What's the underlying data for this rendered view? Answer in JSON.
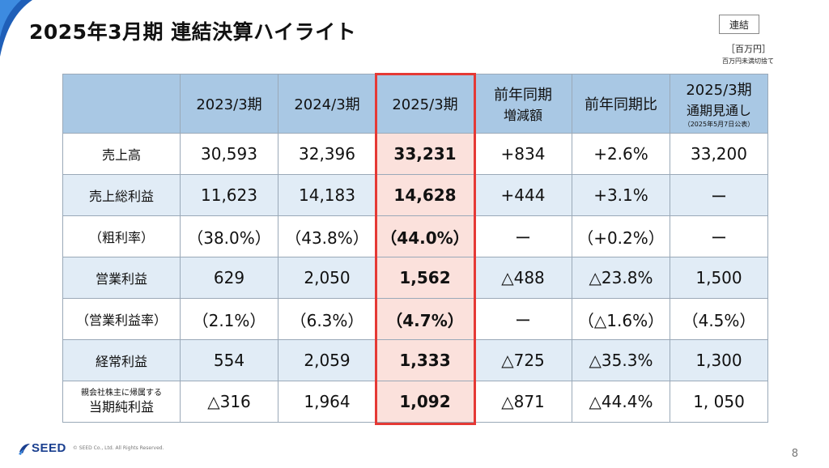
{
  "page": {
    "title": "2025年3月期 連結決算ハイライト",
    "badge": "連結",
    "unit": "［百万円］",
    "unit_note": "百万円未満切捨て",
    "page_number": "8"
  },
  "table": {
    "headers": [
      {
        "label": "",
        "sub": "",
        "tiny": ""
      },
      {
        "label": "2023/3期",
        "sub": "",
        "tiny": ""
      },
      {
        "label": "2024/3期",
        "sub": "",
        "tiny": ""
      },
      {
        "label": "2025/3期",
        "sub": "",
        "tiny": ""
      },
      {
        "label": "前年同期",
        "sub": "増減額",
        "tiny": ""
      },
      {
        "label": "前年同期比",
        "sub": "",
        "tiny": ""
      },
      {
        "label": "2025/3期",
        "sub": "通期見通し",
        "tiny": "（2025年5月7日公表）"
      }
    ],
    "rows": [
      {
        "label_small": "",
        "label": "売上高",
        "cells": [
          "30,593",
          "32,396",
          "33,231",
          "+834",
          "+2.6%",
          "33,200"
        ]
      },
      {
        "label_small": "",
        "label": "売上総利益",
        "cells": [
          "11,623",
          "14,183",
          "14,628",
          "+444",
          "+3.1%",
          "ー"
        ]
      },
      {
        "label_small": "",
        "label": "（粗利率）",
        "cells": [
          "（38.0%）",
          "（43.8%）",
          "（44.0%）",
          "ー",
          "（+0.2%）",
          "ー"
        ]
      },
      {
        "label_small": "",
        "label": "営業利益",
        "cells": [
          "629",
          "2,050",
          "1,562",
          "△488",
          "△23.8%",
          "1,500"
        ]
      },
      {
        "label_small": "",
        "label": "（営業利益率）",
        "cells": [
          "（2.1%）",
          "（6.3%）",
          "（4.7%）",
          "ー",
          "（△1.6%）",
          "（4.5%）"
        ]
      },
      {
        "label_small": "",
        "label": "経常利益",
        "cells": [
          "554",
          "2,059",
          "1,333",
          "△725",
          "△35.3%",
          "1,300"
        ]
      },
      {
        "label_small": "親会社株主に帰属する",
        "label": "当期純利益",
        "cells": [
          "△316",
          "1,964",
          "1,092",
          "△871",
          "△44.4%",
          "1, 050"
        ]
      }
    ]
  },
  "footer": {
    "logo_text": "SEED",
    "copyright": "© SEED Co., Ltd. All Rights Reserved."
  },
  "colors": {
    "header_bg": "#a9c8e4",
    "stripe_bg": "#e1ecf6",
    "highlight_bg": "#fbe1dc",
    "highlight_border": "#e53935",
    "brand_blue": "#1a3f8f"
  }
}
